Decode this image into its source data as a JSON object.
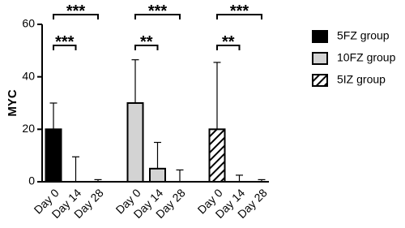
{
  "chart_data": {
    "type": "bar",
    "y_label": "MYC",
    "categories": [
      "Day 0",
      "Day 14",
      "Day 28"
    ],
    "series": [
      {
        "name": "5FZ group",
        "color": "#000000",
        "hatch": false,
        "values": [
          20,
          0,
          0
        ],
        "errors": [
          10,
          9.5,
          0.8
        ],
        "significance": [
          "***",
          "***"
        ]
      },
      {
        "name": "10FZ group",
        "color": "#d3d3d3",
        "hatch": false,
        "values": [
          30,
          5,
          0
        ],
        "errors": [
          16.5,
          10,
          4.5
        ],
        "significance": [
          "**",
          "***"
        ]
      },
      {
        "name": "5IZ group",
        "color": "#ffffff",
        "hatch": true,
        "values": [
          20,
          0,
          0
        ],
        "errors": [
          25.5,
          2.5,
          0.8
        ],
        "significance": [
          "**",
          "***"
        ]
      }
    ],
    "ylim": [
      0,
      60
    ],
    "yticks": [
      0,
      20,
      40,
      60
    ],
    "legend": "right"
  }
}
